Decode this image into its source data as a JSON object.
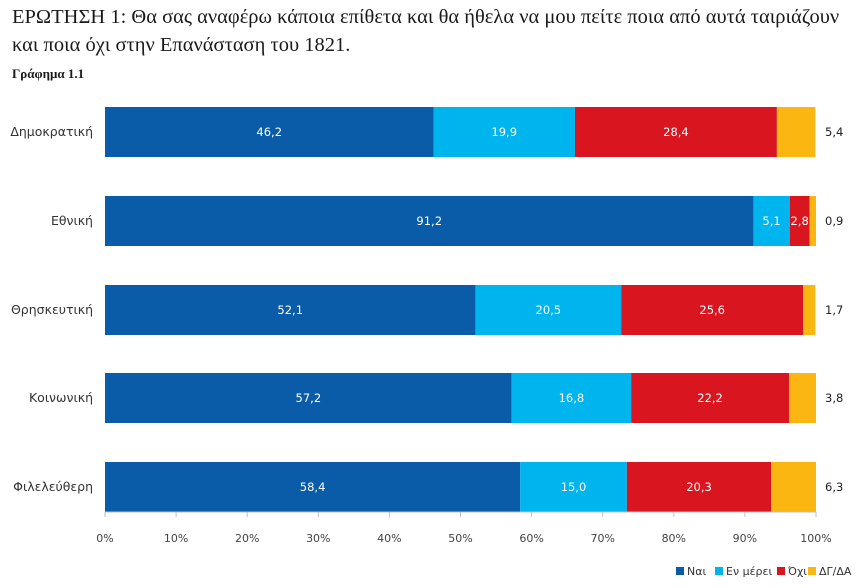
{
  "title": "ΕΡΩΤΗΣΗ 1: Θα σας αναφέρω κάποια επίθετα και θα ήθελα να μου πείτε ποια από αυτά ταιριάζουν και ποια όχι στην Επανάσταση του 1821.",
  "subtitle": "Γράφημα 1.1",
  "colors": {
    "Ναι": "#0a5ba8",
    "Εν μέρει": "#00b4ee",
    "Όχι": "#d9161f",
    "ΔΓ/ΔΑ": "#fbb611"
  },
  "chart_data": {
    "type": "bar",
    "orientation": "horizontal",
    "stacked": true,
    "title": "ΕΡΩΤΗΣΗ 1: Θα σας αναφέρω κάποια επίθετα και θα ήθελα να μου πείτε ποια από αυτά ταιριάζουν και ποια όχι στην Επανάσταση του 1821.",
    "subtitle": "Γράφημα 1.1",
    "categories": [
      "Δημοκρατική",
      "Εθνική",
      "Θρησκευτική",
      "Κοινωνική",
      "Φιλελεύθερη"
    ],
    "series": [
      {
        "name": "Ναι",
        "values": [
          46.2,
          91.2,
          52.1,
          57.2,
          58.4
        ],
        "labels": [
          "46,2",
          "91,2",
          "52,1",
          "57,2",
          "58,4"
        ]
      },
      {
        "name": "Εν μέρει",
        "values": [
          19.9,
          5.1,
          20.5,
          16.8,
          15.0
        ],
        "labels": [
          "19,9",
          "5,1",
          "20,5",
          "16,8",
          "15,0"
        ]
      },
      {
        "name": "Όχι",
        "values": [
          28.4,
          2.8,
          25.6,
          22.2,
          20.3
        ],
        "labels": [
          "28,4",
          "2,8",
          "25,6",
          "22,2",
          "20,3"
        ]
      },
      {
        "name": "ΔΓ/ΔΑ",
        "values": [
          5.4,
          0.9,
          1.7,
          3.8,
          6.3
        ],
        "labels": [
          "5,4",
          "0,9",
          "1,7",
          "3,8",
          "6,3"
        ]
      }
    ],
    "xlim": [
      0,
      100
    ],
    "xticks": [
      "0%",
      "10%",
      "20%",
      "30%",
      "40%",
      "50%",
      "60%",
      "70%",
      "80%",
      "90%",
      "100%"
    ],
    "legend": "bottom-right",
    "grid": false
  }
}
